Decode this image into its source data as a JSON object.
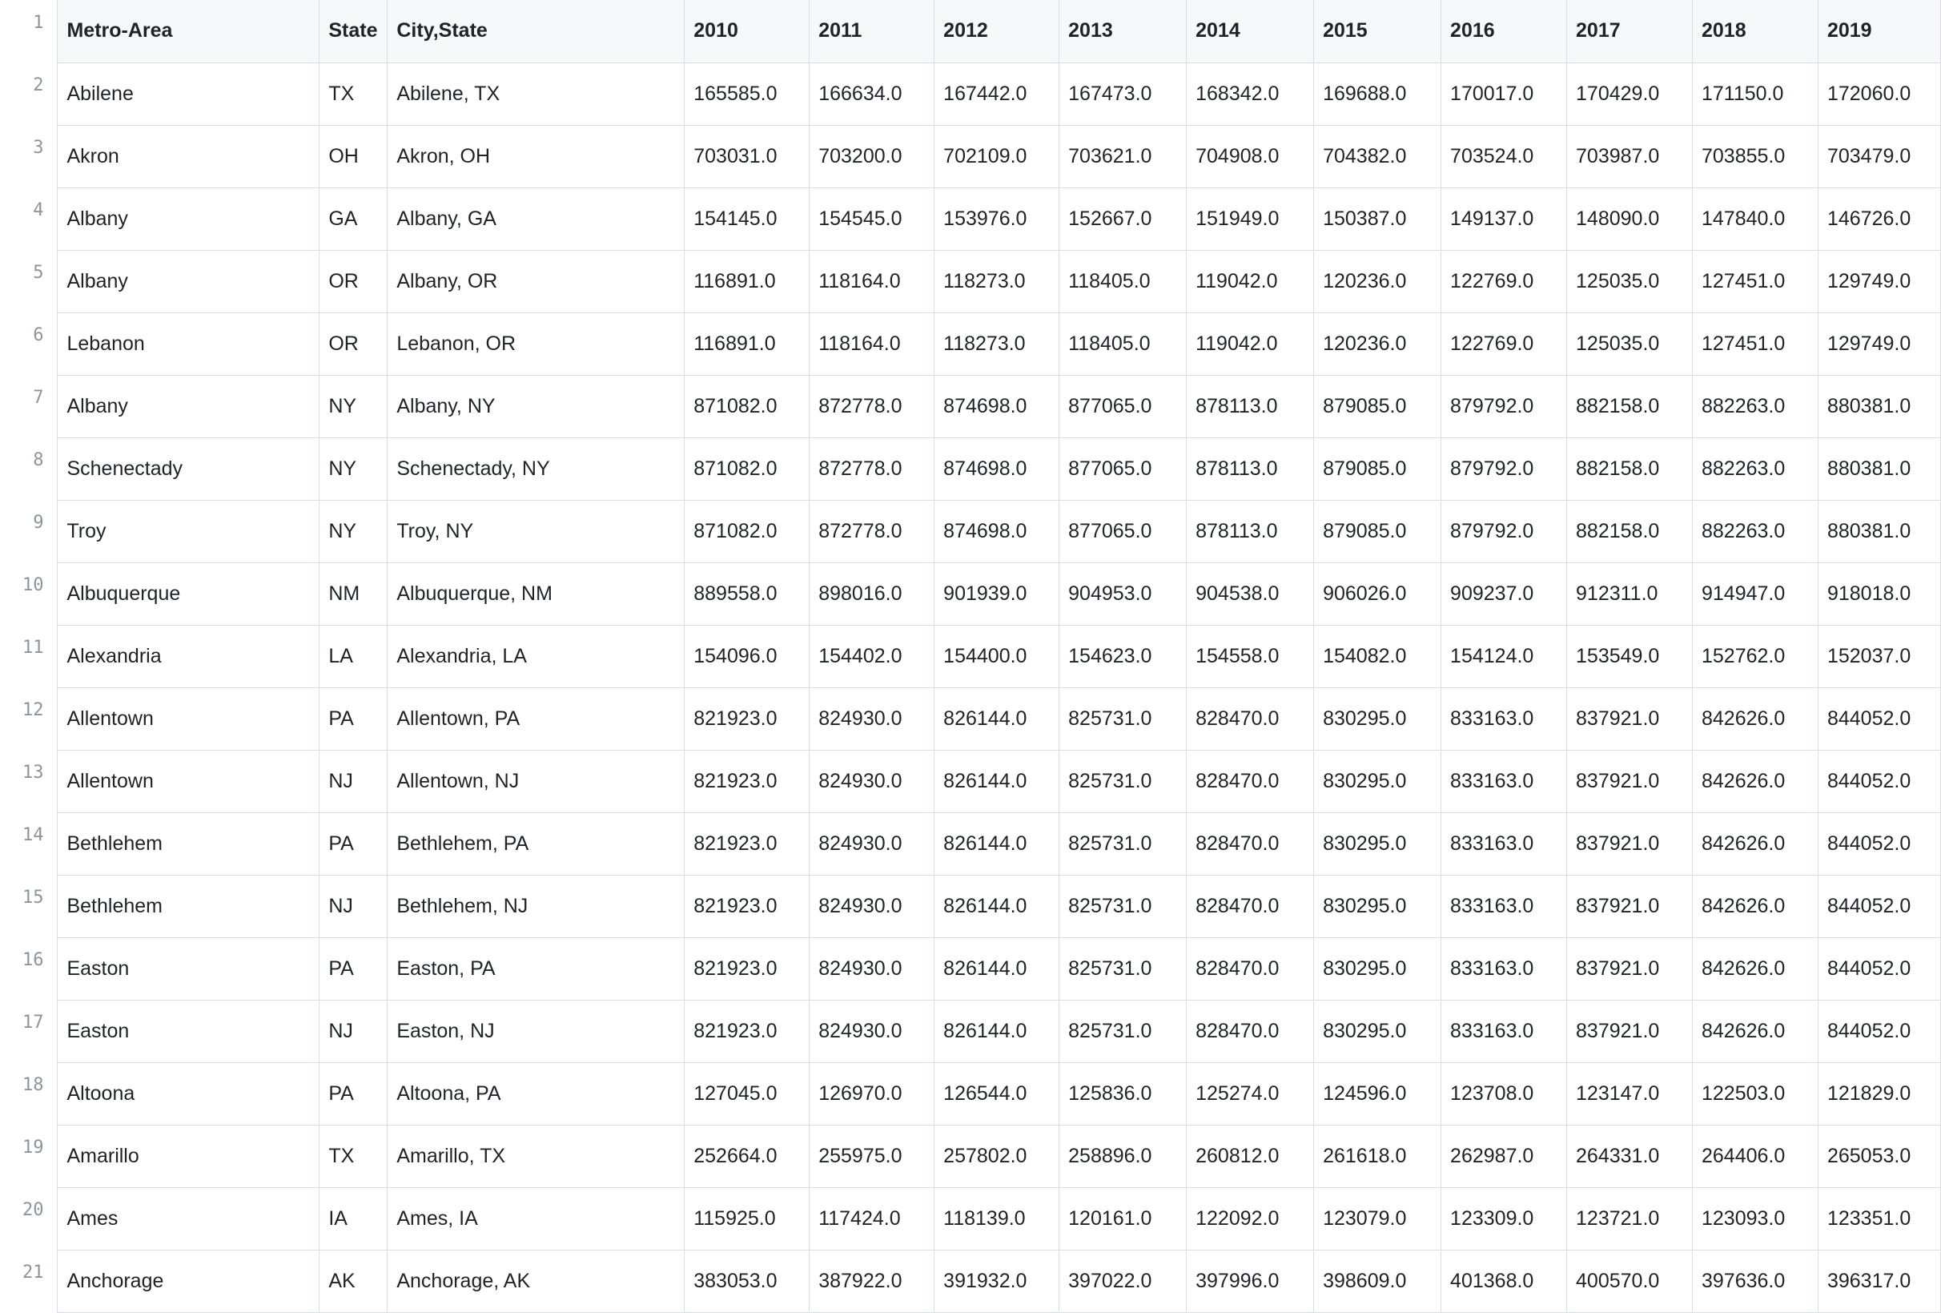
{
  "table": {
    "headers": [
      "Metro-Area",
      "State",
      "City,State",
      "2010",
      "2011",
      "2012",
      "2013",
      "2014",
      "2015",
      "2016",
      "2017",
      "2018",
      "2019"
    ],
    "rows": [
      {
        "n": "2",
        "cells": [
          "Abilene",
          "TX",
          "Abilene, TX",
          "165585.0",
          "166634.0",
          "167442.0",
          "167473.0",
          "168342.0",
          "169688.0",
          "170017.0",
          "170429.0",
          "171150.0",
          "172060.0"
        ]
      },
      {
        "n": "3",
        "cells": [
          "Akron",
          "OH",
          "Akron, OH",
          "703031.0",
          "703200.0",
          "702109.0",
          "703621.0",
          "704908.0",
          "704382.0",
          "703524.0",
          "703987.0",
          "703855.0",
          "703479.0"
        ]
      },
      {
        "n": "4",
        "cells": [
          "Albany",
          "GA",
          "Albany, GA",
          "154145.0",
          "154545.0",
          "153976.0",
          "152667.0",
          "151949.0",
          "150387.0",
          "149137.0",
          "148090.0",
          "147840.0",
          "146726.0"
        ]
      },
      {
        "n": "5",
        "cells": [
          "Albany",
          "OR",
          "Albany, OR",
          "116891.0",
          "118164.0",
          "118273.0",
          "118405.0",
          "119042.0",
          "120236.0",
          "122769.0",
          "125035.0",
          "127451.0",
          "129749.0"
        ]
      },
      {
        "n": "6",
        "cells": [
          "Lebanon",
          "OR",
          "Lebanon, OR",
          "116891.0",
          "118164.0",
          "118273.0",
          "118405.0",
          "119042.0",
          "120236.0",
          "122769.0",
          "125035.0",
          "127451.0",
          "129749.0"
        ]
      },
      {
        "n": "7",
        "cells": [
          "Albany",
          "NY",
          "Albany, NY",
          "871082.0",
          "872778.0",
          "874698.0",
          "877065.0",
          "878113.0",
          "879085.0",
          "879792.0",
          "882158.0",
          "882263.0",
          "880381.0"
        ]
      },
      {
        "n": "8",
        "cells": [
          "Schenectady",
          "NY",
          "Schenectady, NY",
          "871082.0",
          "872778.0",
          "874698.0",
          "877065.0",
          "878113.0",
          "879085.0",
          "879792.0",
          "882158.0",
          "882263.0",
          "880381.0"
        ]
      },
      {
        "n": "9",
        "cells": [
          "Troy",
          "NY",
          "Troy, NY",
          "871082.0",
          "872778.0",
          "874698.0",
          "877065.0",
          "878113.0",
          "879085.0",
          "879792.0",
          "882158.0",
          "882263.0",
          "880381.0"
        ]
      },
      {
        "n": "10",
        "cells": [
          "Albuquerque",
          "NM",
          "Albuquerque, NM",
          "889558.0",
          "898016.0",
          "901939.0",
          "904953.0",
          "904538.0",
          "906026.0",
          "909237.0",
          "912311.0",
          "914947.0",
          "918018.0"
        ]
      },
      {
        "n": "11",
        "cells": [
          "Alexandria",
          "LA",
          "Alexandria, LA",
          "154096.0",
          "154402.0",
          "154400.0",
          "154623.0",
          "154558.0",
          "154082.0",
          "154124.0",
          "153549.0",
          "152762.0",
          "152037.0"
        ]
      },
      {
        "n": "12",
        "cells": [
          "Allentown",
          "PA",
          "Allentown, PA",
          "821923.0",
          "824930.0",
          "826144.0",
          "825731.0",
          "828470.0",
          "830295.0",
          "833163.0",
          "837921.0",
          "842626.0",
          "844052.0"
        ]
      },
      {
        "n": "13",
        "cells": [
          "Allentown",
          "NJ",
          "Allentown, NJ",
          "821923.0",
          "824930.0",
          "826144.0",
          "825731.0",
          "828470.0",
          "830295.0",
          "833163.0",
          "837921.0",
          "842626.0",
          "844052.0"
        ]
      },
      {
        "n": "14",
        "cells": [
          "Bethlehem",
          "PA",
          "Bethlehem, PA",
          "821923.0",
          "824930.0",
          "826144.0",
          "825731.0",
          "828470.0",
          "830295.0",
          "833163.0",
          "837921.0",
          "842626.0",
          "844052.0"
        ]
      },
      {
        "n": "15",
        "cells": [
          "Bethlehem",
          "NJ",
          "Bethlehem, NJ",
          "821923.0",
          "824930.0",
          "826144.0",
          "825731.0",
          "828470.0",
          "830295.0",
          "833163.0",
          "837921.0",
          "842626.0",
          "844052.0"
        ]
      },
      {
        "n": "16",
        "cells": [
          "Easton",
          "PA",
          "Easton, PA",
          "821923.0",
          "824930.0",
          "826144.0",
          "825731.0",
          "828470.0",
          "830295.0",
          "833163.0",
          "837921.0",
          "842626.0",
          "844052.0"
        ]
      },
      {
        "n": "17",
        "cells": [
          "Easton",
          "NJ",
          "Easton, NJ",
          "821923.0",
          "824930.0",
          "826144.0",
          "825731.0",
          "828470.0",
          "830295.0",
          "833163.0",
          "837921.0",
          "842626.0",
          "844052.0"
        ]
      },
      {
        "n": "18",
        "cells": [
          "Altoona",
          "PA",
          "Altoona, PA",
          "127045.0",
          "126970.0",
          "126544.0",
          "125836.0",
          "125274.0",
          "124596.0",
          "123708.0",
          "123147.0",
          "122503.0",
          "121829.0"
        ]
      },
      {
        "n": "19",
        "cells": [
          "Amarillo",
          "TX",
          "Amarillo, TX",
          "252664.0",
          "255975.0",
          "257802.0",
          "258896.0",
          "260812.0",
          "261618.0",
          "262987.0",
          "264331.0",
          "264406.0",
          "265053.0"
        ]
      },
      {
        "n": "20",
        "cells": [
          "Ames",
          "IA",
          "Ames, IA",
          "115925.0",
          "117424.0",
          "118139.0",
          "120161.0",
          "122092.0",
          "123079.0",
          "123309.0",
          "123721.0",
          "123093.0",
          "123351.0"
        ]
      },
      {
        "n": "21",
        "cells": [
          "Anchorage",
          "AK",
          "Anchorage, AK",
          "383053.0",
          "387922.0",
          "391932.0",
          "397022.0",
          "397996.0",
          "398609.0",
          "401368.0",
          "400570.0",
          "397636.0",
          "396317.0"
        ]
      }
    ]
  }
}
